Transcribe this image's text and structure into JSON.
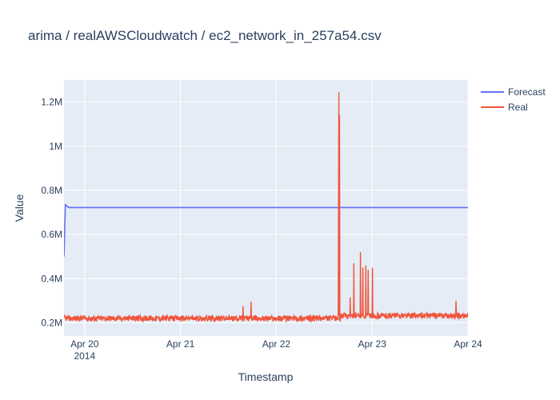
{
  "chart_data": {
    "type": "line",
    "title": "arima / realAWSCloudwatch / ec2_network_in_257a54.csv",
    "xlabel": "Timestamp",
    "ylabel": "Value",
    "x_range": [
      "2014-04-19 18:50",
      "2014-04-24 00:00"
    ],
    "y_range": [
      140000,
      1300000
    ],
    "x_ticks": [
      {
        "date": "2014-04-20",
        "label": "Apr 20",
        "sublabel": "2014"
      },
      {
        "date": "2014-04-21",
        "label": "Apr 21",
        "sublabel": ""
      },
      {
        "date": "2014-04-22",
        "label": "Apr 22",
        "sublabel": ""
      },
      {
        "date": "2014-04-23",
        "label": "Apr 23",
        "sublabel": ""
      },
      {
        "date": "2014-04-24",
        "label": "Apr 24",
        "sublabel": ""
      }
    ],
    "y_ticks": [
      {
        "value": 200000,
        "label": "0.2M"
      },
      {
        "value": 400000,
        "label": "0.4M"
      },
      {
        "value": 600000,
        "label": "0.6M"
      },
      {
        "value": 800000,
        "label": "0.8M"
      },
      {
        "value": 1000000,
        "label": "1M"
      },
      {
        "value": 1200000,
        "label": "1.2M"
      }
    ],
    "grid": true,
    "legend": "top-right",
    "series": [
      {
        "name": "Forecast",
        "color": "#636efa",
        "points": [
          [
            "2014-04-19 18:50",
            500000
          ],
          [
            "2014-04-19 19:10",
            735000
          ],
          [
            "2014-04-19 19:30",
            730000
          ],
          [
            "2014-04-19 20:00",
            722000
          ],
          [
            "2014-04-24 00:00",
            722000
          ]
        ]
      },
      {
        "name": "Real",
        "color": "#ef553b",
        "baseline": 220000,
        "points": [
          [
            "2014-04-21 15:40",
            275000
          ],
          [
            "2014-04-21 17:40",
            295000
          ],
          [
            "2014-04-22 15:35",
            800000
          ],
          [
            "2014-04-22 15:40",
            1245000
          ],
          [
            "2014-04-22 15:50",
            1140000
          ],
          [
            "2014-04-22 18:30",
            315000
          ],
          [
            "2014-04-22 19:25",
            470000
          ],
          [
            "2014-04-22 21:05",
            520000
          ],
          [
            "2014-04-22 21:40",
            450000
          ],
          [
            "2014-04-22 22:25",
            460000
          ],
          [
            "2014-04-22 23:00",
            440000
          ],
          [
            "2014-04-23 00:05",
            450000
          ],
          [
            "2014-04-23 21:00",
            300000
          ]
        ]
      }
    ]
  }
}
